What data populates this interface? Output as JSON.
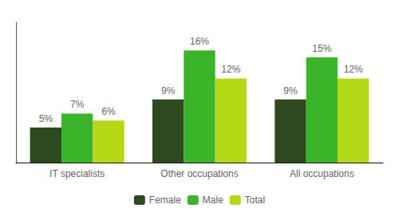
{
  "chart_data": {
    "type": "bar",
    "categories": [
      "IT specialists",
      "Other occupations",
      "All occupations"
    ],
    "series": [
      {
        "name": "Female",
        "color": "#2d4a1e",
        "values": [
          5,
          9,
          9
        ],
        "value_labels": [
          "5%",
          "9%",
          "9%"
        ]
      },
      {
        "name": "Male",
        "color": "#3ab529",
        "values": [
          7,
          16,
          15
        ],
        "value_labels": [
          "7%",
          "16%",
          "15%"
        ]
      },
      {
        "name": "Total",
        "color": "#b5d916",
        "values": [
          6,
          12,
          12
        ],
        "value_labels": [
          "6%",
          "12%",
          "12%"
        ]
      }
    ],
    "ylim": [
      0,
      20
    ],
    "grid": false,
    "legend": "bottom",
    "data_labels": true,
    "tick_labels": "x"
  }
}
